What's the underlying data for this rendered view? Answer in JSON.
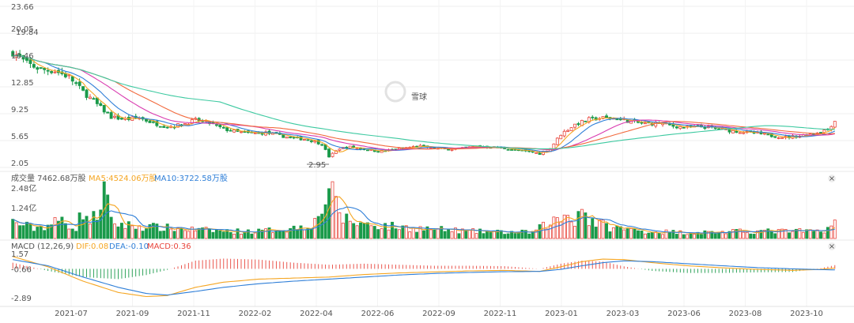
{
  "watermark": "雪球",
  "price_axis": {
    "ticks": [
      "23.66",
      "20.05",
      "16.46",
      "12.85",
      "9.25",
      "5.65",
      "2.05"
    ],
    "max_label": "19.84",
    "min_label": "2.95"
  },
  "volume_header": {
    "total": "成交量 7462.68万股",
    "ma5": "MA5:4524.06万股",
    "ma10": "MA10:3722.58万股"
  },
  "volume_axis": {
    "ticks": [
      "2.48亿",
      "1.24亿"
    ]
  },
  "macd_header": {
    "title": "MACD (12,26,9)",
    "dif": "DIF:0.08",
    "dea": "DEA:-0.10",
    "macd": "MACD:0.36"
  },
  "macd_axis": {
    "ticks": [
      "1.57",
      "-0.66",
      "-2.89"
    ]
  },
  "x_axis": {
    "ticks": [
      "2021-07",
      "2021-09",
      "2021-11",
      "2022-02",
      "2022-04",
      "2022-06",
      "2022-09",
      "2022-11",
      "2023-01",
      "2023-03",
      "2023-06",
      "2023-08",
      "2023-10"
    ]
  },
  "colors": {
    "up": "#e8453c",
    "down": "#1a9a4a",
    "ma_orange": "#f5a623",
    "ma_blue": "#2f7fd8",
    "ma_magenta": "#d93bb0",
    "ma_red": "#f26a3e",
    "ma_teal": "#3cc9a0",
    "dif": "#f5a623",
    "dea": "#2f7fd8"
  },
  "chart_data": {
    "type": "candlestick",
    "price_range": [
      2.05,
      23.66
    ],
    "volume_range": [
      0,
      2.48
    ],
    "macd_range": [
      -2.89,
      1.57
    ],
    "anchors": {
      "close": [
        [
          0,
          17.5
        ],
        [
          4,
          16.0
        ],
        [
          8,
          15.2
        ],
        [
          12,
          15.0
        ],
        [
          16,
          14.2
        ],
        [
          20,
          12.2
        ],
        [
          24,
          10.5
        ],
        [
          28,
          8.8
        ],
        [
          32,
          8.5
        ],
        [
          36,
          8.7
        ],
        [
          40,
          8.0
        ],
        [
          44,
          7.5
        ],
        [
          48,
          7.8
        ],
        [
          52,
          8.4
        ],
        [
          56,
          8.0
        ],
        [
          60,
          7.2
        ],
        [
          64,
          6.8
        ],
        [
          68,
          6.6
        ],
        [
          72,
          6.7
        ],
        [
          76,
          6.3
        ],
        [
          80,
          6.0
        ],
        [
          84,
          5.8
        ],
        [
          88,
          5.2
        ],
        [
          90,
          3.5
        ],
        [
          93,
          4.6
        ],
        [
          96,
          4.8
        ],
        [
          100,
          4.5
        ],
        [
          104,
          4.2
        ],
        [
          108,
          4.4
        ],
        [
          112,
          4.7
        ],
        [
          116,
          4.9
        ],
        [
          120,
          4.6
        ],
        [
          124,
          4.5
        ],
        [
          128,
          4.6
        ],
        [
          132,
          4.9
        ],
        [
          136,
          4.8
        ],
        [
          140,
          4.6
        ],
        [
          144,
          4.3
        ],
        [
          148,
          4.1
        ],
        [
          150,
          3.9
        ],
        [
          153,
          4.6
        ],
        [
          156,
          6.5
        ],
        [
          160,
          7.8
        ],
        [
          164,
          8.5
        ],
        [
          168,
          8.7
        ],
        [
          172,
          8.6
        ],
        [
          176,
          8.2
        ],
        [
          180,
          7.9
        ],
        [
          184,
          8.0
        ],
        [
          188,
          7.6
        ],
        [
          192,
          7.4
        ],
        [
          196,
          7.5
        ],
        [
          200,
          7.3
        ],
        [
          204,
          7.0
        ],
        [
          208,
          6.8
        ],
        [
          212,
          6.6
        ],
        [
          216,
          6.3
        ],
        [
          220,
          6.1
        ],
        [
          224,
          6.3
        ],
        [
          228,
          6.6
        ],
        [
          232,
          7.2
        ],
        [
          234,
          8.3
        ]
      ],
      "volume": [
        [
          0,
          0.8
        ],
        [
          6,
          0.5
        ],
        [
          10,
          0.65
        ],
        [
          14,
          0.9
        ],
        [
          18,
          0.5
        ],
        [
          20,
          1.4
        ],
        [
          22,
          0.8
        ],
        [
          24,
          1.2
        ],
        [
          26,
          2.4
        ],
        [
          28,
          0.8
        ],
        [
          32,
          0.65
        ],
        [
          40,
          0.55
        ],
        [
          50,
          0.45
        ],
        [
          60,
          0.35
        ],
        [
          70,
          0.35
        ],
        [
          80,
          0.5
        ],
        [
          86,
          0.8
        ],
        [
          88,
          1.5
        ],
        [
          90,
          2.45
        ],
        [
          92,
          1.6
        ],
        [
          94,
          1.0
        ],
        [
          98,
          0.75
        ],
        [
          104,
          0.65
        ],
        [
          110,
          0.55
        ],
        [
          120,
          0.45
        ],
        [
          130,
          0.35
        ],
        [
          140,
          0.3
        ],
        [
          148,
          0.3
        ],
        [
          152,
          0.7
        ],
        [
          156,
          1.0
        ],
        [
          158,
          1.2
        ],
        [
          160,
          0.9
        ],
        [
          162,
          1.6
        ],
        [
          164,
          0.9
        ],
        [
          170,
          0.55
        ],
        [
          180,
          0.35
        ],
        [
          190,
          0.3
        ],
        [
          200,
          0.3
        ],
        [
          210,
          0.35
        ],
        [
          220,
          0.35
        ],
        [
          230,
          0.35
        ],
        [
          234,
          0.75
        ]
      ],
      "dif": [
        [
          0,
          1.2
        ],
        [
          10,
          0.2
        ],
        [
          20,
          -1.2
        ],
        [
          30,
          -2.3
        ],
        [
          38,
          -2.7
        ],
        [
          44,
          -2.6
        ],
        [
          52,
          -1.8
        ],
        [
          60,
          -1.3
        ],
        [
          70,
          -1.0
        ],
        [
          80,
          -0.9
        ],
        [
          90,
          -0.8
        ],
        [
          100,
          -0.55
        ],
        [
          110,
          -0.4
        ],
        [
          120,
          -0.3
        ],
        [
          130,
          -0.2
        ],
        [
          140,
          -0.15
        ],
        [
          150,
          -0.25
        ],
        [
          156,
          0.2
        ],
        [
          162,
          0.7
        ],
        [
          168,
          0.95
        ],
        [
          174,
          0.9
        ],
        [
          182,
          0.6
        ],
        [
          192,
          0.3
        ],
        [
          202,
          0.1
        ],
        [
          212,
          -0.05
        ],
        [
          222,
          -0.15
        ],
        [
          230,
          -0.05
        ],
        [
          234,
          0.08
        ]
      ],
      "dea": [
        [
          0,
          0.9
        ],
        [
          10,
          0.3
        ],
        [
          20,
          -0.8
        ],
        [
          30,
          -1.8
        ],
        [
          38,
          -2.4
        ],
        [
          44,
          -2.55
        ],
        [
          52,
          -2.2
        ],
        [
          60,
          -1.8
        ],
        [
          70,
          -1.45
        ],
        [
          80,
          -1.2
        ],
        [
          90,
          -1.0
        ],
        [
          100,
          -0.8
        ],
        [
          110,
          -0.6
        ],
        [
          120,
          -0.45
        ],
        [
          130,
          -0.35
        ],
        [
          140,
          -0.28
        ],
        [
          150,
          -0.25
        ],
        [
          156,
          -0.05
        ],
        [
          162,
          0.3
        ],
        [
          168,
          0.6
        ],
        [
          174,
          0.78
        ],
        [
          182,
          0.7
        ],
        [
          192,
          0.5
        ],
        [
          202,
          0.3
        ],
        [
          212,
          0.12
        ],
        [
          222,
          0.0
        ],
        [
          230,
          -0.08
        ],
        [
          234,
          -0.1
        ]
      ]
    },
    "n_bars": 235
  }
}
